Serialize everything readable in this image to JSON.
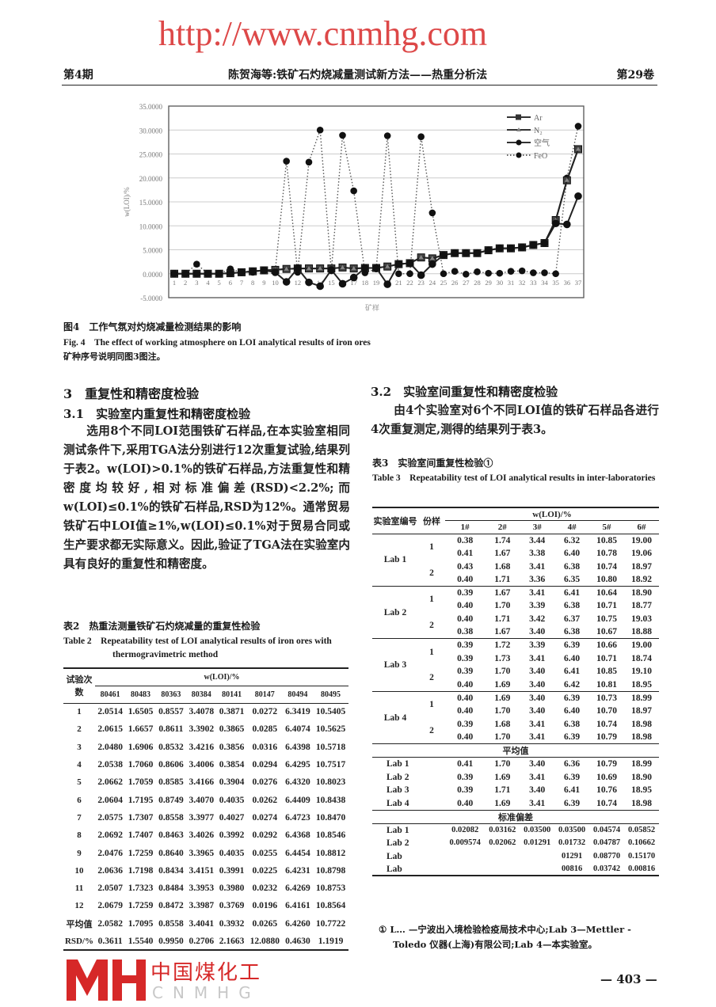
{
  "header": {
    "issue": "第4期",
    "running_title": "陈贺海等:铁矿石灼烧减量测试新方法——热重分析法",
    "volume": "第29卷"
  },
  "figure4": {
    "caption_cn": "图4　工作气氛对灼烧减量检测结果的影响",
    "caption_en": "Fig. 4　The effect of working atmosphere on LOI analytical results of iron ores",
    "note": "矿种序号说明同图3图注。"
  },
  "chart_data": {
    "type": "line",
    "ylabel": "w(LOI)/%",
    "xlabel": "矿样",
    "ylim": [
      -5,
      35
    ],
    "yticks": [
      "35.0000",
      "30.0000",
      "25.0000",
      "20.0000",
      "15.0000",
      "10.0000",
      "5.0000",
      "0.0000",
      "-5.0000"
    ],
    "grid": true,
    "legend_position": "top-right",
    "x": [
      1,
      2,
      3,
      4,
      5,
      6,
      7,
      8,
      9,
      10,
      11,
      12,
      13,
      14,
      15,
      16,
      17,
      18,
      19,
      20,
      21,
      22,
      23,
      24,
      25,
      26,
      27,
      28,
      29,
      30,
      31,
      32,
      33,
      34,
      35,
      36,
      37
    ],
    "series": [
      {
        "name": "Ar",
        "marker": "square",
        "style": "solid",
        "values": [
          0,
          0,
          0,
          0,
          0,
          0.1,
          0.3,
          0.5,
          0.7,
          0.8,
          1.0,
          1.1,
          1.1,
          1.1,
          1.1,
          1.3,
          1.1,
          1.2,
          1.2,
          1.5,
          2.0,
          2.2,
          3.4,
          3.2,
          3.9,
          4.3,
          4.3,
          4.3,
          4.9,
          5.3,
          5.3,
          5.5,
          6.0,
          6.4,
          11.2,
          19.5,
          26.0
        ]
      },
      {
        "name": "N₂",
        "marker": "triangle",
        "style": "solid",
        "values": [
          0,
          0,
          0,
          0,
          0,
          0.1,
          0.3,
          0.5,
          0.7,
          0.8,
          1.0,
          1.1,
          1.1,
          1.1,
          1.1,
          1.3,
          1.1,
          1.2,
          1.2,
          1.5,
          2.0,
          2.2,
          3.4,
          3.2,
          3.9,
          4.3,
          4.3,
          4.3,
          4.9,
          5.3,
          5.3,
          5.5,
          6.0,
          6.4,
          11.2,
          19.5,
          26.0
        ]
      },
      {
        "name": "空气",
        "marker": "circle",
        "style": "solid",
        "values": [
          0,
          0,
          0,
          0,
          0,
          0.1,
          0.3,
          0.5,
          0.7,
          0.3,
          -1.7,
          1.1,
          -1.8,
          -2.6,
          0.8,
          -2.1,
          -0.8,
          1.2,
          1.2,
          -2.2,
          2.0,
          2.2,
          -0.3,
          2.0,
          3.9,
          4.3,
          4.3,
          4.3,
          4.9,
          5.3,
          5.3,
          5.5,
          6.0,
          6.4,
          10.5,
          10.3,
          16.2
        ]
      },
      {
        "name": "FeO",
        "marker": "circle",
        "style": "dotted",
        "values": [
          0,
          0,
          2.0,
          0,
          0,
          1.0,
          0.3,
          0.3,
          0.7,
          0.6,
          23.5,
          0.3,
          23.3,
          30.0,
          0.6,
          28.9,
          17.3,
          0.2,
          1.0,
          28.8,
          0,
          0,
          28.6,
          12.7,
          0,
          0.5,
          -0.1,
          0.4,
          0.1,
          0.1,
          0.5,
          0.6,
          0.2,
          0.2,
          0,
          20.0,
          30.8
        ]
      }
    ]
  },
  "section3": {
    "title": "3　重复性和精密度检验",
    "s31_title": "3.1　实验室内重复性和精密度检验",
    "s31_body": "选用8个不同LOI范围铁矿石样品,在本实验室相同测试条件下,采用TGA法分别进行12次重复试验,结果列于表2。w(LOI)>0.1%的铁矿石样品,方法重复性和精密度均较好,相对标准偏差(RSD)<2.2%;而w(LOI)≤0.1%的铁矿石样品,RSD为12%。通常贸易铁矿石中LOI值≥1%,w(LOI)≤0.1%对于贸易合同或生产要求都无实际意义。因此,验证了TGA法在实验室内具有良好的重复性和精密度。",
    "s32_title": "3.2　实验室间重复性和精密度检验",
    "s32_body": "由4个实验室对6个不同LOI值的铁矿石样品各进行4次重复测定,测得的结果列于表3。"
  },
  "table2": {
    "caption_cn": "表2　热重法测量铁矿石灼烧减量的重复性检验",
    "caption_en": "Table 2　Repeatability test of LOI analytical results of iron ores with thermogravimetric method",
    "row_header": "试验次数",
    "group_header": "w(LOI)/%",
    "columns": [
      "80461",
      "80483",
      "80363",
      "80384",
      "80141",
      "80147",
      "80494",
      "80495"
    ],
    "rows": [
      [
        "1",
        "2.0514",
        "1.6505",
        "0.8557",
        "3.4078",
        "0.3871",
        "0.0272",
        "6.3419",
        "10.5405"
      ],
      [
        "2",
        "2.0615",
        "1.6657",
        "0.8611",
        "3.3902",
        "0.3865",
        "0.0285",
        "6.4074",
        "10.5625"
      ],
      [
        "3",
        "2.0480",
        "1.6906",
        "0.8532",
        "3.4216",
        "0.3856",
        "0.0316",
        "6.4398",
        "10.5718"
      ],
      [
        "4",
        "2.0538",
        "1.7060",
        "0.8606",
        "3.4006",
        "0.3854",
        "0.0294",
        "6.4295",
        "10.7517"
      ],
      [
        "5",
        "2.0662",
        "1.7059",
        "0.8585",
        "3.4166",
        "0.3904",
        "0.0276",
        "6.4320",
        "10.8023"
      ],
      [
        "6",
        "2.0604",
        "1.7195",
        "0.8749",
        "3.4070",
        "0.4035",
        "0.0262",
        "6.4409",
        "10.8438"
      ],
      [
        "7",
        "2.0575",
        "1.7307",
        "0.8558",
        "3.3977",
        "0.4027",
        "0.0274",
        "6.4723",
        "10.8470"
      ],
      [
        "8",
        "2.0692",
        "1.7407",
        "0.8463",
        "3.4026",
        "0.3992",
        "0.0292",
        "6.4368",
        "10.8546"
      ],
      [
        "9",
        "2.0476",
        "1.7259",
        "0.8640",
        "3.3965",
        "0.4035",
        "0.0255",
        "6.4454",
        "10.8812"
      ],
      [
        "10",
        "2.0636",
        "1.7198",
        "0.8434",
        "3.4151",
        "0.3991",
        "0.0225",
        "6.4231",
        "10.8798"
      ],
      [
        "11",
        "2.0507",
        "1.7323",
        "0.8484",
        "3.3953",
        "0.3980",
        "0.0232",
        "6.4269",
        "10.8753"
      ],
      [
        "12",
        "2.0679",
        "1.7259",
        "0.8472",
        "3.3987",
        "0.3769",
        "0.0196",
        "6.4161",
        "10.8564"
      ],
      [
        "平均值",
        "2.0582",
        "1.7095",
        "0.8558",
        "3.4041",
        "0.3932",
        "0.0265",
        "6.4260",
        "10.7722"
      ],
      [
        "RSD/%",
        "0.3611",
        "1.5540",
        "0.9950",
        "0.2706",
        "2.1663",
        "12.0880",
        "0.4630",
        "1.1919"
      ]
    ]
  },
  "table3": {
    "caption_cn": "表3　实验室间重复性检验①",
    "caption_en": "Table 3　Repeatability test of LOI analytical results in inter-laboratories",
    "lab_header": "实验室编号",
    "portion_header": "份样",
    "group_header": "w(LOI)/%",
    "columns": [
      "1#",
      "2#",
      "3#",
      "4#",
      "5#",
      "6#"
    ],
    "labs": [
      {
        "lab": "Lab 1",
        "portions": [
          {
            "p": "1",
            "rows": [
              [
                "0.38",
                "1.74",
                "3.44",
                "6.32",
                "10.85",
                "19.00"
              ],
              [
                "0.41",
                "1.67",
                "3.38",
                "6.40",
                "10.78",
                "19.06"
              ]
            ]
          },
          {
            "p": "2",
            "rows": [
              [
                "0.43",
                "1.68",
                "3.41",
                "6.38",
                "10.74",
                "18.97"
              ],
              [
                "0.40",
                "1.71",
                "3.36",
                "6.35",
                "10.80",
                "18.92"
              ]
            ]
          }
        ]
      },
      {
        "lab": "Lab 2",
        "portions": [
          {
            "p": "1",
            "rows": [
              [
                "0.39",
                "1.67",
                "3.41",
                "6.41",
                "10.64",
                "18.90"
              ],
              [
                "0.40",
                "1.70",
                "3.39",
                "6.38",
                "10.71",
                "18.77"
              ]
            ]
          },
          {
            "p": "2",
            "rows": [
              [
                "0.40",
                "1.71",
                "3.42",
                "6.37",
                "10.75",
                "19.03"
              ],
              [
                "0.38",
                "1.67",
                "3.40",
                "6.38",
                "10.67",
                "18.88"
              ]
            ]
          }
        ]
      },
      {
        "lab": "Lab 3",
        "portions": [
          {
            "p": "1",
            "rows": [
              [
                "0.39",
                "1.72",
                "3.39",
                "6.39",
                "10.66",
                "19.00"
              ],
              [
                "0.39",
                "1.73",
                "3.41",
                "6.40",
                "10.71",
                "18.74"
              ]
            ]
          },
          {
            "p": "2",
            "rows": [
              [
                "0.39",
                "1.70",
                "3.40",
                "6.41",
                "10.85",
                "19.10"
              ],
              [
                "0.40",
                "1.69",
                "3.40",
                "6.42",
                "10.81",
                "18.95"
              ]
            ]
          }
        ]
      },
      {
        "lab": "Lab 4",
        "portions": [
          {
            "p": "1",
            "rows": [
              [
                "0.40",
                "1.69",
                "3.40",
                "6.39",
                "10.73",
                "18.99"
              ],
              [
                "0.40",
                "1.70",
                "3.40",
                "6.40",
                "10.70",
                "18.97"
              ]
            ]
          },
          {
            "p": "2",
            "rows": [
              [
                "0.39",
                "1.68",
                "3.41",
                "6.38",
                "10.74",
                "18.98"
              ],
              [
                "0.40",
                "1.70",
                "3.41",
                "6.39",
                "10.79",
                "18.98"
              ]
            ]
          }
        ]
      }
    ],
    "mean_label": "平均值",
    "means": [
      [
        "Lab 1",
        "0.41",
        "1.70",
        "3.40",
        "6.36",
        "10.79",
        "18.99"
      ],
      [
        "Lab 2",
        "0.39",
        "1.69",
        "3.41",
        "6.39",
        "10.69",
        "18.90"
      ],
      [
        "Lab 3",
        "0.39",
        "1.71",
        "3.40",
        "6.41",
        "10.76",
        "18.95"
      ],
      [
        "Lab 4",
        "0.40",
        "1.69",
        "3.41",
        "6.39",
        "10.74",
        "18.98"
      ]
    ],
    "sd_label": "标准偏差",
    "sds": [
      [
        "Lab 1",
        "0.02082",
        "0.03162",
        "0.03500",
        "0.03500",
        "0.04574",
        "0.05852"
      ],
      [
        "Lab 2",
        "0.009574",
        "0.02062",
        "0.01291",
        "0.01732",
        "0.04787",
        "0.10662"
      ],
      [
        "Lab",
        "",
        "",
        "",
        "01291",
        "0.08770",
        "0.15170"
      ],
      [
        "Lab",
        "",
        "",
        "",
        "00816",
        "0.03742",
        "0.00816"
      ]
    ],
    "footnote": "① L… —宁波出入境检验检疫局技术中心;Lab 3—Mettler - Toledo 仪器(上海)有限公司;Lab 4—本实验室。"
  },
  "page_number": "— 403 —",
  "watermark": "http://www.cnmhg.com",
  "logo": {
    "cn": "中国煤化工",
    "en": "CNMHG",
    "color": "#d62828"
  }
}
